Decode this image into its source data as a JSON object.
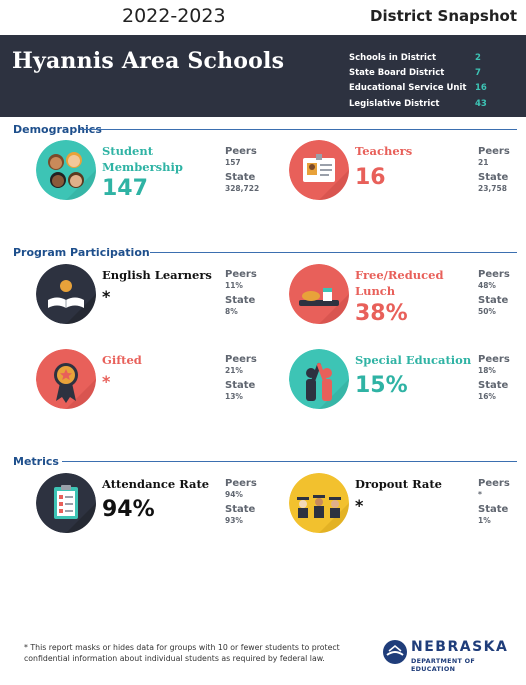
{
  "header": {
    "year": "2022-2023",
    "report_type": "District Snapshot"
  },
  "district": {
    "name": "Hyannis Area Schools",
    "info": [
      {
        "label": "Schools in District",
        "value": "2"
      },
      {
        "label": "State Board District",
        "value": "7"
      },
      {
        "label": "Educational Service Unit",
        "value": "16"
      },
      {
        "label": "Legislative District",
        "value": "43"
      }
    ]
  },
  "sections": {
    "demographics": "Demographics",
    "program": "Program Participation",
    "metrics": "Metrics"
  },
  "peers_label": "Peers",
  "state_label": "State",
  "stats": {
    "student_membership": {
      "label_line1": "Student",
      "label_line2": "Membership",
      "value": "147",
      "peers": "157",
      "state": "328,722"
    },
    "teachers": {
      "label": "Teachers",
      "value": "16",
      "peers": "21",
      "state": "23,758"
    },
    "english_learners": {
      "label": "English Learners",
      "value": "*",
      "peers": "11%",
      "state": "8%"
    },
    "free_reduced_lunch": {
      "label_line1": "Free/Reduced",
      "label_line2": "Lunch",
      "value": "38%",
      "peers": "48%",
      "state": "50%"
    },
    "gifted": {
      "label": "Gifted",
      "value": "*",
      "peers": "21%",
      "state": "13%"
    },
    "special_education": {
      "label": "Special Education",
      "value": "15%",
      "peers": "18%",
      "state": "16%"
    },
    "attendance_rate": {
      "label": "Attendance Rate",
      "value": "94%",
      "peers": "94%",
      "state": "93%"
    },
    "dropout_rate": {
      "label": "Dropout Rate",
      "value": "*",
      "peers": "*",
      "state": "1%"
    }
  },
  "footnote": "* This report masks or hides data for groups with 10 or fewer students to protect confidential information about individual students as required by federal law.",
  "logo": {
    "name": "NEBRASKA",
    "subtitle": "DEPARTMENT OF EDUCATION"
  },
  "colors": {
    "banner": "#2d3240",
    "teal": "#2fb3a4",
    "red": "#e8605a",
    "section_blue": "#1e4f8c"
  },
  "icons": {
    "student_membership": "students-faces-icon",
    "teachers": "id-badge-icon",
    "english_learners": "open-book-icon",
    "free_reduced_lunch": "lunch-tray-icon",
    "gifted": "award-ribbon-icon",
    "special_education": "people-high-five-icon",
    "attendance_rate": "clipboard-checklist-icon",
    "dropout_rate": "graduates-icon"
  }
}
